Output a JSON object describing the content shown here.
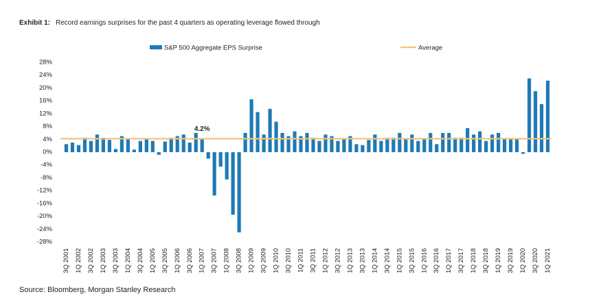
{
  "chart_data": {
    "type": "bar",
    "title": {
      "label": "Exhibit 1:",
      "text": "Record earnings surprises for the past 4 quarters as operating leverage flowed through"
    },
    "source": "Source: Bloomberg, Morgan Stanley Research",
    "categories": [
      "3Q 2001",
      null,
      "1Q 2002",
      null,
      "3Q 2002",
      null,
      "1Q 2003",
      null,
      "3Q 2003",
      null,
      "1Q 2004",
      null,
      "3Q 2004",
      null,
      "1Q 2005",
      null,
      "3Q 2005",
      null,
      "1Q 2006",
      null,
      "3Q 2006",
      null,
      "1Q 2007",
      null,
      "3Q 2007",
      null,
      "1Q 2008",
      null,
      "3Q 2008",
      null,
      "1Q 2009",
      null,
      "3Q 2009",
      null,
      "1Q 2010",
      null,
      "3Q 2010",
      null,
      "1Q 2011",
      null,
      "3Q 2011",
      null,
      "1Q 2012",
      null,
      "3Q 2012",
      null,
      "1Q 2013",
      null,
      "3Q 2013",
      null,
      "1Q 2014",
      null,
      "3Q 2014",
      null,
      "1Q 2015",
      null,
      "3Q 2015",
      null,
      "1Q 2016",
      null,
      "3Q 2016",
      null,
      "1Q 2017",
      null,
      "3Q 2017",
      null,
      "1Q 2018",
      null,
      "3Q 2018",
      null,
      "1Q 2019",
      null,
      "3Q 2019",
      null,
      "1Q 2020",
      null,
      "3Q 2020",
      null,
      "1Q 2021"
    ],
    "series": [
      {
        "name": "S&P 500 Aggregate EPS Surprise",
        "color": "#1f7ab5",
        "values": [
          2.5,
          3,
          2.2,
          4.5,
          3.5,
          5.5,
          4.5,
          3.8,
          1,
          5,
          4,
          0.8,
          3.5,
          4,
          3.5,
          -0.8,
          3.3,
          4.5,
          5,
          5.5,
          3,
          6,
          4,
          -2,
          -13.5,
          -4.5,
          -8.5,
          -19.5,
          -25,
          6,
          16.5,
          12.5,
          5.5,
          13.5,
          9.5,
          6,
          5,
          6.5,
          5,
          6,
          4.5,
          3.5,
          5.5,
          5,
          3.5,
          4,
          5,
          2.5,
          2.2,
          3.8,
          5.5,
          3.5,
          4.5,
          4.5,
          6,
          4,
          5.5,
          3.5,
          4,
          6,
          2.5,
          6,
          6,
          4.5,
          4.5,
          7.5,
          5.5,
          6.5,
          3.5,
          5.5,
          6,
          4,
          4,
          4,
          -0.5,
          23,
          19,
          15,
          22.3
        ]
      }
    ],
    "average": {
      "name": "Average",
      "value": 4.2,
      "value_label": "4.2%",
      "color": "#f0c47c"
    },
    "ylim": [
      -28,
      28
    ],
    "yticks": [
      {
        "value": -28,
        "label": "-28%"
      },
      {
        "value": -24,
        "label": "-24%"
      },
      {
        "value": -20,
        "label": "-20%"
      },
      {
        "value": -16,
        "label": "-16%"
      },
      {
        "value": -12,
        "label": "-12%"
      },
      {
        "value": -8,
        "label": "-8%"
      },
      {
        "value": -4,
        "label": "-4%"
      },
      {
        "value": 0,
        "label": "0%"
      },
      {
        "value": 4,
        "label": "4%"
      },
      {
        "value": 8,
        "label": "8%"
      },
      {
        "value": 12,
        "label": "12%"
      },
      {
        "value": 16,
        "label": "16%"
      },
      {
        "value": 20,
        "label": "20%"
      },
      {
        "value": 24,
        "label": "24%"
      },
      {
        "value": 28,
        "label": "28%"
      }
    ],
    "grid": false
  }
}
